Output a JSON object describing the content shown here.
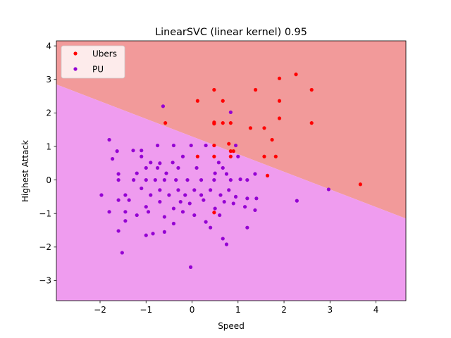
{
  "chart_data": {
    "type": "scatter",
    "title": "LinearSVC (linear kernel) 0.95",
    "xlabel": "Speed",
    "ylabel": "Highest Attack",
    "xlim": [
      -2.95,
      4.65
    ],
    "ylim": [
      -3.6,
      4.15
    ],
    "xticks": [
      -2,
      -1,
      0,
      1,
      2,
      3,
      4
    ],
    "yticks": [
      -3,
      -2,
      -1,
      0,
      1,
      2,
      3,
      4
    ],
    "grid": false,
    "legend_position": "top-left",
    "decision_boundary": {
      "points": [
        [
          -2.95,
          2.85
        ],
        [
          4.65,
          -1.15
        ]
      ],
      "region_above_color": "#f29a9a",
      "region_below_color": "#ef9cef"
    },
    "series": [
      {
        "name": "Ubers",
        "color": "#ff0000",
        "points": [
          [
            2.26,
            3.15
          ],
          [
            1.9,
            3.03
          ],
          [
            0.48,
            2.69
          ],
          [
            1.38,
            2.69
          ],
          [
            2.6,
            2.69
          ],
          [
            0.12,
            2.36
          ],
          [
            0.67,
            2.36
          ],
          [
            1.9,
            2.36
          ],
          [
            1.9,
            1.84
          ],
          [
            -0.58,
            1.7
          ],
          [
            0.48,
            1.72
          ],
          [
            0.48,
            1.68
          ],
          [
            0.67,
            1.7
          ],
          [
            0.84,
            1.7
          ],
          [
            2.6,
            1.7
          ],
          [
            1.27,
            1.55
          ],
          [
            1.57,
            1.55
          ],
          [
            1.74,
            1.2
          ],
          [
            0.48,
            1.03
          ],
          [
            0.8,
            1.08
          ],
          [
            0.84,
            0.86
          ],
          [
            0.9,
            0.86
          ],
          [
            0.12,
            0.7
          ],
          [
            0.48,
            0.7
          ],
          [
            0.84,
            0.7
          ],
          [
            1.57,
            0.7
          ],
          [
            1.82,
            0.7
          ],
          [
            1.64,
            0.13
          ],
          [
            3.66,
            -0.13
          ],
          [
            0.48,
            -0.97
          ]
        ]
      },
      {
        "name": "PU",
        "color": "#9400d3",
        "points": [
          [
            -0.63,
            2.2
          ],
          [
            0.84,
            2.02
          ],
          [
            -1.8,
            1.2
          ],
          [
            -1.63,
            0.86
          ],
          [
            -1.28,
            0.88
          ],
          [
            -1.1,
            0.88
          ],
          [
            -0.75,
            1.03
          ],
          [
            -0.4,
            1.03
          ],
          [
            -0.02,
            1.03
          ],
          [
            0.3,
            1.03
          ],
          [
            0.95,
            1.03
          ],
          [
            -1.73,
            0.63
          ],
          [
            -1.1,
            0.7
          ],
          [
            -0.9,
            0.52
          ],
          [
            -0.7,
            0.5
          ],
          [
            -0.42,
            0.52
          ],
          [
            -0.2,
            0.7
          ],
          [
            0.58,
            0.52
          ],
          [
            0.67,
            0.36
          ],
          [
            1.0,
            0.7
          ],
          [
            -1.6,
            0.18
          ],
          [
            -1.2,
            0.2
          ],
          [
            -1.0,
            0.36
          ],
          [
            -0.75,
            0.36
          ],
          [
            -0.56,
            0.2
          ],
          [
            -0.3,
            0.36
          ],
          [
            0.1,
            0.36
          ],
          [
            0.5,
            0.2
          ],
          [
            0.75,
            0.18
          ],
          [
            1.37,
            0.18
          ],
          [
            -1.6,
            0.0
          ],
          [
            -1.27,
            0.0
          ],
          [
            -1.0,
            0.0
          ],
          [
            -0.8,
            0.0
          ],
          [
            -0.6,
            0.0
          ],
          [
            -0.35,
            0.0
          ],
          [
            -0.1,
            0.0
          ],
          [
            0.2,
            0.0
          ],
          [
            0.48,
            0.0
          ],
          [
            0.84,
            0.0
          ],
          [
            1.05,
            0.02
          ],
          [
            1.2,
            0.0
          ],
          [
            -1.97,
            -0.45
          ],
          [
            -1.45,
            -0.45
          ],
          [
            -1.1,
            -0.25
          ],
          [
            -0.9,
            -0.45
          ],
          [
            -0.7,
            -0.3
          ],
          [
            -0.5,
            -0.45
          ],
          [
            -0.3,
            -0.3
          ],
          [
            -0.15,
            -0.45
          ],
          [
            0.05,
            -0.3
          ],
          [
            0.2,
            -0.45
          ],
          [
            0.4,
            -0.3
          ],
          [
            0.62,
            -0.45
          ],
          [
            0.8,
            -0.3
          ],
          [
            0.95,
            -0.5
          ],
          [
            1.2,
            -0.55
          ],
          [
            1.4,
            -0.55
          ],
          [
            -1.6,
            -0.6
          ],
          [
            -1.37,
            -0.6
          ],
          [
            -1.0,
            -0.8
          ],
          [
            -0.7,
            -0.65
          ],
          [
            -0.4,
            -0.85
          ],
          [
            -0.25,
            -0.65
          ],
          [
            -0.05,
            -0.7
          ],
          [
            0.25,
            -0.6
          ],
          [
            0.5,
            -0.85
          ],
          [
            0.7,
            -0.65
          ],
          [
            0.9,
            -0.7
          ],
          [
            1.15,
            -0.8
          ],
          [
            1.37,
            -0.9
          ],
          [
            -1.8,
            -0.95
          ],
          [
            -1.45,
            -0.95
          ],
          [
            -1.2,
            -1.05
          ],
          [
            -0.95,
            -0.95
          ],
          [
            -0.6,
            -1.1
          ],
          [
            -0.4,
            -1.3
          ],
          [
            -0.2,
            -0.95
          ],
          [
            0.05,
            -1.05
          ],
          [
            0.3,
            -1.25
          ],
          [
            0.6,
            -1.05
          ],
          [
            -1.6,
            -1.52
          ],
          [
            -1.45,
            -1.22
          ],
          [
            -1.0,
            -1.65
          ],
          [
            -0.85,
            -1.6
          ],
          [
            -0.6,
            -1.55
          ],
          [
            0.4,
            -1.42
          ],
          [
            0.67,
            -1.75
          ],
          [
            0.75,
            -1.92
          ],
          [
            1.2,
            -1.42
          ],
          [
            -1.52,
            -2.17
          ],
          [
            -0.03,
            -2.6
          ],
          [
            2.97,
            -0.28
          ],
          [
            2.28,
            -0.62
          ]
        ]
      }
    ]
  }
}
